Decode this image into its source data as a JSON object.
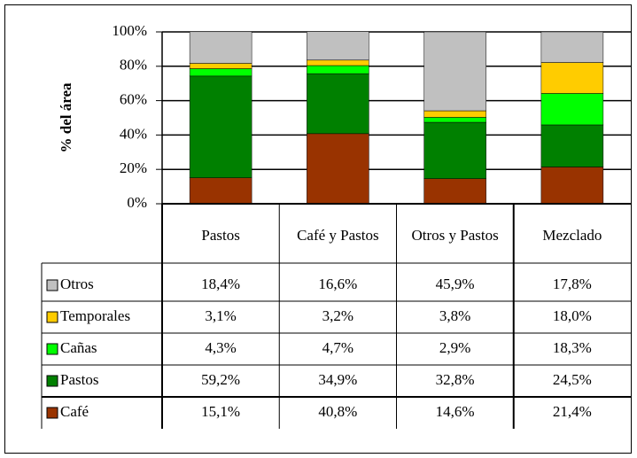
{
  "chart_data": {
    "type": "stacked-bar",
    "ylabel": "% del área",
    "categories": [
      "Pastos",
      "Café y Pastos",
      "Otros y Pastos",
      "Mezclado"
    ],
    "series": [
      {
        "name": "Otros",
        "color": "#c0c0c0",
        "values": [
          18.4,
          16.6,
          45.9,
          17.8
        ],
        "value_labels": [
          "18,4%",
          "16,6%",
          "45,9%",
          "17,8%"
        ]
      },
      {
        "name": "Temporales",
        "color": "#ffcc00",
        "values": [
          3.1,
          3.2,
          3.8,
          18.0
        ],
        "value_labels": [
          "3,1%",
          "3,2%",
          "3,8%",
          "18,0%"
        ]
      },
      {
        "name": "Cañas",
        "color": "#00ff00",
        "values": [
          4.3,
          4.7,
          2.9,
          18.3
        ],
        "value_labels": [
          "4,3%",
          "4,7%",
          "2,9%",
          "18,3%"
        ]
      },
      {
        "name": "Pastos",
        "color": "#008000",
        "values": [
          59.2,
          34.9,
          32.8,
          24.5
        ],
        "value_labels": [
          "59,2%",
          "34,9%",
          "32,8%",
          "24,5%"
        ]
      },
      {
        "name": "Café",
        "color": "#993300",
        "values": [
          15.1,
          40.8,
          14.6,
          21.4
        ],
        "value_labels": [
          "15,1%",
          "40,8%",
          "14,6%",
          "21,4%"
        ]
      }
    ],
    "ylim": [
      0,
      100
    ],
    "yticks": [
      {
        "value": 0,
        "label": "0%"
      },
      {
        "value": 20,
        "label": "20%"
      },
      {
        "value": 40,
        "label": "40%"
      },
      {
        "value": 60,
        "label": "60%"
      },
      {
        "value": 80,
        "label": "80%"
      },
      {
        "value": 100,
        "label": "100%"
      }
    ],
    "grid": true
  }
}
